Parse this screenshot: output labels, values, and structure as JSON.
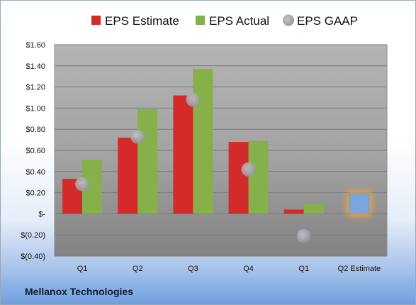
{
  "company": "Mellanox Technologies",
  "colors": {
    "estimate": "#d42a2a",
    "actual": "#86b04a",
    "gaap": "#a9adb3",
    "projected": "#79a6dc",
    "projected_glow": "#f6a23a"
  },
  "chart_data": {
    "type": "bar",
    "categories": [
      "Q1",
      "Q2",
      "Q3",
      "Q4",
      "Q1",
      "Q2 Estimate"
    ],
    "series": [
      {
        "name": "EPS Estimate",
        "values": [
          0.33,
          0.72,
          1.12,
          0.68,
          0.04,
          0.19
        ]
      },
      {
        "name": "EPS Actual",
        "values": [
          0.51,
          0.99,
          1.37,
          0.69,
          0.09,
          null
        ]
      },
      {
        "name": "EPS GAAP",
        "values": [
          0.28,
          0.73,
          1.08,
          0.42,
          -0.21,
          null
        ]
      }
    ],
    "legend": [
      "EPS Estimate",
      "EPS Actual",
      "EPS GAAP"
    ],
    "legend_position": "top",
    "y_ticks": [
      {
        "value": 1.6,
        "label": "$1.60"
      },
      {
        "value": 1.4,
        "label": "$1.40"
      },
      {
        "value": 1.2,
        "label": "$1.20"
      },
      {
        "value": 1.0,
        "label": "$1.00"
      },
      {
        "value": 0.8,
        "label": "$0.80"
      },
      {
        "value": 0.6,
        "label": "$0.60"
      },
      {
        "value": 0.4,
        "label": "$0.40"
      },
      {
        "value": 0.2,
        "label": "$0.20"
      },
      {
        "value": 0.0,
        "label": "$-"
      },
      {
        "value": -0.2,
        "label": "$(0.20)"
      },
      {
        "value": -0.4,
        "label": "$(0.40)"
      }
    ],
    "ylim": [
      -0.4,
      1.6
    ],
    "grid": true,
    "gaap_style": "circle-markers",
    "projected_category": "Q2 Estimate"
  }
}
